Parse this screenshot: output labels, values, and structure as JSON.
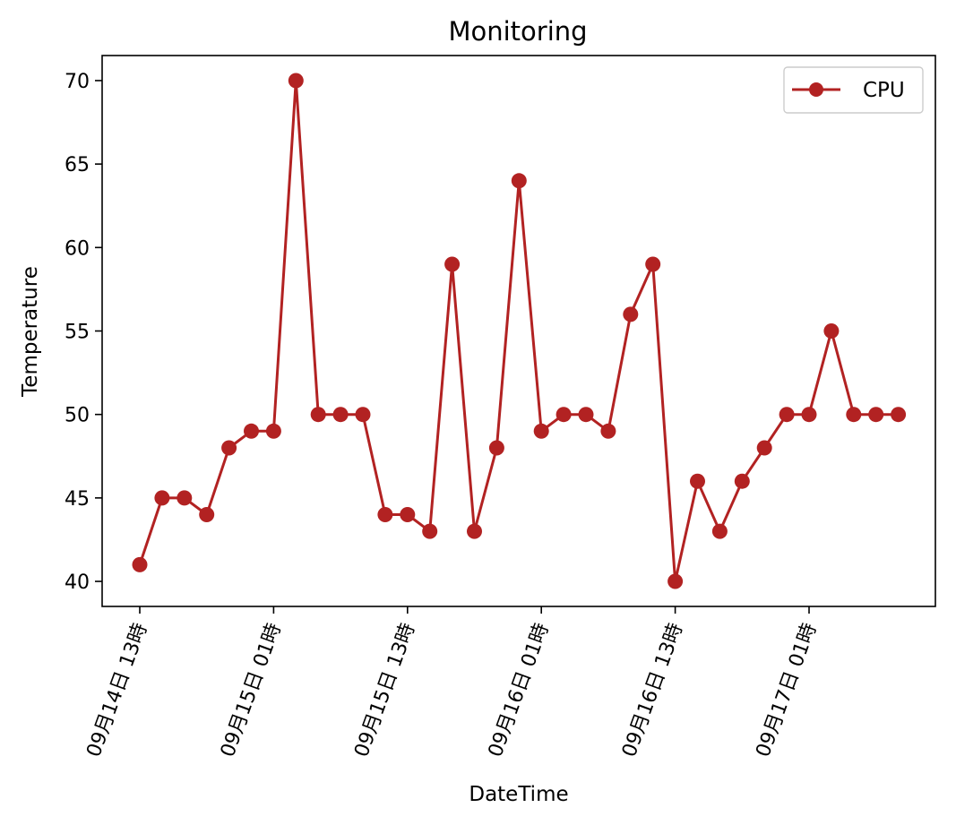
{
  "chart_data": {
    "type": "line",
    "title": "Monitoring",
    "xlabel": "DateTime",
    "ylabel": "Temperature",
    "ylim": [
      38.5,
      71.5
    ],
    "yticks": [
      40,
      45,
      50,
      55,
      60,
      65,
      70
    ],
    "xticks": [
      {
        "index": 0,
        "label": "09月14日 13時"
      },
      {
        "index": 6,
        "label": "09月15日 01時"
      },
      {
        "index": 12,
        "label": "09月15日 13時"
      },
      {
        "index": 18,
        "label": "09月16日 01時"
      },
      {
        "index": 24,
        "label": "09月16日 13時"
      },
      {
        "index": 30,
        "label": "09月17日 01時"
      }
    ],
    "x_step_hours": 2,
    "series": [
      {
        "name": "CPU",
        "color": "#b22222",
        "values": [
          41,
          45,
          45,
          44,
          48,
          49,
          49,
          70,
          50,
          50,
          50,
          44,
          44,
          43,
          59,
          43,
          48,
          64,
          49,
          50,
          50,
          49,
          56,
          59,
          40,
          46,
          43,
          46,
          48,
          50,
          50,
          55,
          50,
          50,
          50
        ]
      }
    ],
    "legend": "top-right",
    "grid": false
  }
}
